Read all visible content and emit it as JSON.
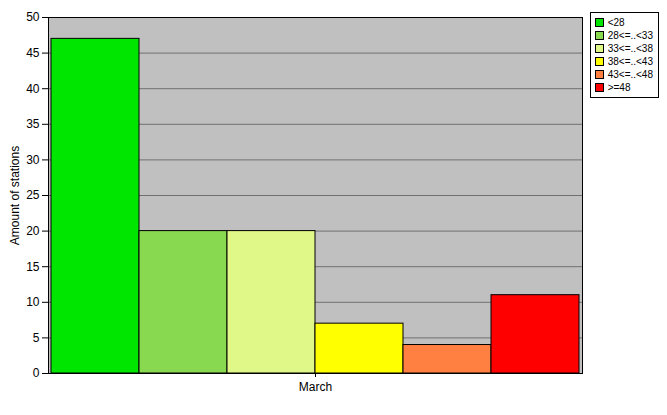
{
  "chart_data": {
    "type": "bar",
    "categories": [
      "March"
    ],
    "series": [
      {
        "name": "<28",
        "color": "#00e600",
        "values": [
          47
        ]
      },
      {
        "name": "28<=..<33",
        "color": "#88d850",
        "values": [
          20
        ]
      },
      {
        "name": "33<=..<38",
        "color": "#e0f888",
        "values": [
          20
        ]
      },
      {
        "name": "38<=..<43",
        "color": "#ffff00",
        "values": [
          7
        ]
      },
      {
        "name": "43<=..<48",
        "color": "#ff8040",
        "values": [
          4
        ]
      },
      {
        "name": ">=48",
        "color": "#ff0000",
        "values": [
          11
        ]
      }
    ],
    "ylabel": "Amount of stations",
    "ylim": [
      0,
      50
    ],
    "yticks": [
      0,
      5,
      10,
      15,
      20,
      25,
      30,
      35,
      40,
      45,
      50
    ],
    "grid": true,
    "legend": "top-right"
  }
}
